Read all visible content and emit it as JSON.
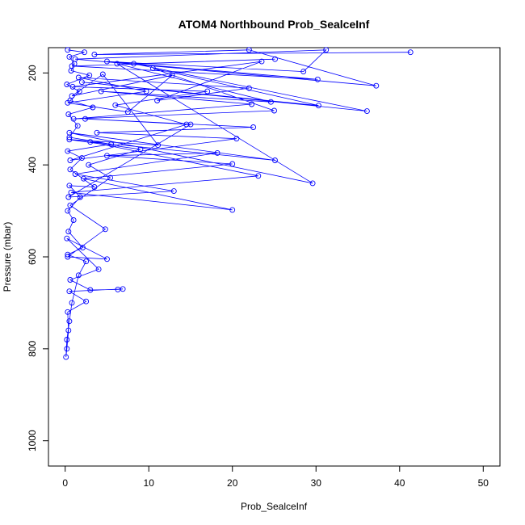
{
  "chart_data": {
    "type": "line",
    "title": "ATOM4 Northbound Prob_SealceInf",
    "xlabel": "Prob_SealceInf",
    "ylabel": "Pressure (mbar)",
    "xlim": [
      -2,
      52
    ],
    "ylim": [
      1055,
      145
    ],
    "y_reversed": true,
    "grid": false,
    "legend": "none",
    "x_ticks": [
      0,
      10,
      20,
      30,
      40,
      50
    ],
    "y_ticks": [
      200,
      400,
      600,
      800,
      1000
    ],
    "series": [
      {
        "color": "#0000ff",
        "marker": "open-circle",
        "points": [
          [
            41.3,
            155
          ],
          [
            3.5,
            160
          ],
          [
            22.0,
            150
          ],
          [
            37.2,
            228
          ],
          [
            1.2,
            170
          ],
          [
            31.2,
            150
          ],
          [
            28.5,
            197
          ],
          [
            5.0,
            175
          ],
          [
            30.2,
            214
          ],
          [
            0.8,
            185
          ],
          [
            25.1,
            170
          ],
          [
            8.2,
            180
          ],
          [
            36.1,
            283
          ],
          [
            2.0,
            220
          ],
          [
            30.3,
            271
          ],
          [
            10.5,
            190
          ],
          [
            25.0,
            282
          ],
          [
            1.0,
            300
          ],
          [
            22.3,
            268
          ],
          [
            4.3,
            240
          ],
          [
            24.6,
            263
          ],
          [
            6.2,
            180
          ],
          [
            29.6,
            440
          ],
          [
            0.5,
            330
          ],
          [
            25.1,
            390
          ],
          [
            3.0,
            350
          ],
          [
            23.1,
            424
          ],
          [
            0.7,
            460
          ],
          [
            20.0,
            498
          ],
          [
            2.2,
            430
          ],
          [
            20.0,
            398
          ],
          [
            5.0,
            380
          ],
          [
            18.2,
            374
          ],
          [
            1.2,
            420
          ],
          [
            13.0,
            457
          ],
          [
            0.4,
            470
          ],
          [
            15.0,
            312
          ],
          [
            2.4,
            300
          ],
          [
            22.5,
            318
          ],
          [
            3.8,
            330
          ],
          [
            20.5,
            343
          ],
          [
            0.6,
            390
          ],
          [
            14.5,
            312
          ],
          [
            6.0,
            270
          ],
          [
            17.0,
            240
          ],
          [
            0.9,
            230
          ],
          [
            23.5,
            175
          ],
          [
            11.0,
            260
          ],
          [
            22.0,
            233
          ],
          [
            1.6,
            210
          ],
          [
            9.7,
            240
          ],
          [
            0.3,
            265
          ],
          [
            7.5,
            285
          ],
          [
            12.8,
            205
          ],
          [
            0.8,
            250
          ],
          [
            4.5,
            203
          ],
          [
            11.1,
            357
          ],
          [
            0.5,
            345
          ],
          [
            9.0,
            366
          ],
          [
            2.8,
            400
          ],
          [
            5.4,
            428
          ],
          [
            0.6,
            488
          ],
          [
            4.8,
            540
          ],
          [
            0.3,
            600
          ],
          [
            5.0,
            605
          ],
          [
            0.2,
            560
          ],
          [
            4.0,
            627
          ],
          [
            0.6,
            650
          ],
          [
            3.0,
            672
          ],
          [
            6.3,
            671
          ],
          [
            6.9,
            670
          ],
          [
            0.5,
            675
          ],
          [
            2.5,
            697
          ],
          [
            0.3,
            720
          ],
          [
            0.4,
            760
          ],
          [
            0.2,
            800
          ],
          [
            0.1,
            818
          ],
          [
            0.2,
            780
          ],
          [
            0.5,
            740
          ],
          [
            0.8,
            700
          ],
          [
            1.6,
            640
          ],
          [
            2.5,
            610
          ],
          [
            0.3,
            595
          ],
          [
            2.1,
            580
          ],
          [
            0.4,
            545
          ],
          [
            1.0,
            520
          ],
          [
            0.3,
            500
          ],
          [
            1.8,
            470
          ],
          [
            0.5,
            445
          ],
          [
            3.5,
            448
          ],
          [
            0.6,
            410
          ],
          [
            2.0,
            385
          ],
          [
            0.3,
            370
          ],
          [
            5.5,
            355
          ],
          [
            0.5,
            340
          ],
          [
            1.5,
            315
          ],
          [
            0.4,
            290
          ],
          [
            3.3,
            275
          ],
          [
            0.6,
            260
          ],
          [
            1.7,
            240
          ],
          [
            0.2,
            225
          ],
          [
            2.9,
            205
          ],
          [
            0.7,
            195
          ],
          [
            1.1,
            180
          ],
          [
            0.5,
            165
          ],
          [
            2.3,
            155
          ],
          [
            0.3,
            150
          ]
        ]
      }
    ]
  }
}
